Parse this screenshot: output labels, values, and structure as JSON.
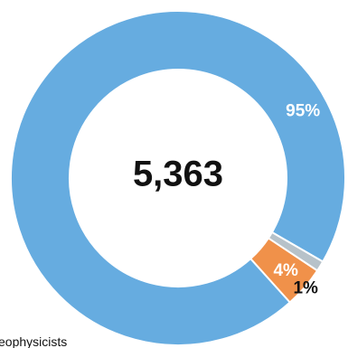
{
  "chart_data": {
    "type": "pie",
    "donut": true,
    "total_label": "5,363",
    "slices": [
      {
        "value": 95,
        "label": "95%",
        "color": "#66ace0",
        "label_color": "#ffffff"
      },
      {
        "value": 4,
        "label": "4%",
        "color": "#f0914a",
        "label_color": "#ffffff"
      },
      {
        "value": 1,
        "label": "1%",
        "color": "#b7c2c9",
        "label_color": "#111111"
      }
    ],
    "partial_legend_text": "eophysicists",
    "colors": {
      "separator": "#ffffff",
      "background": "#ffffff"
    }
  }
}
